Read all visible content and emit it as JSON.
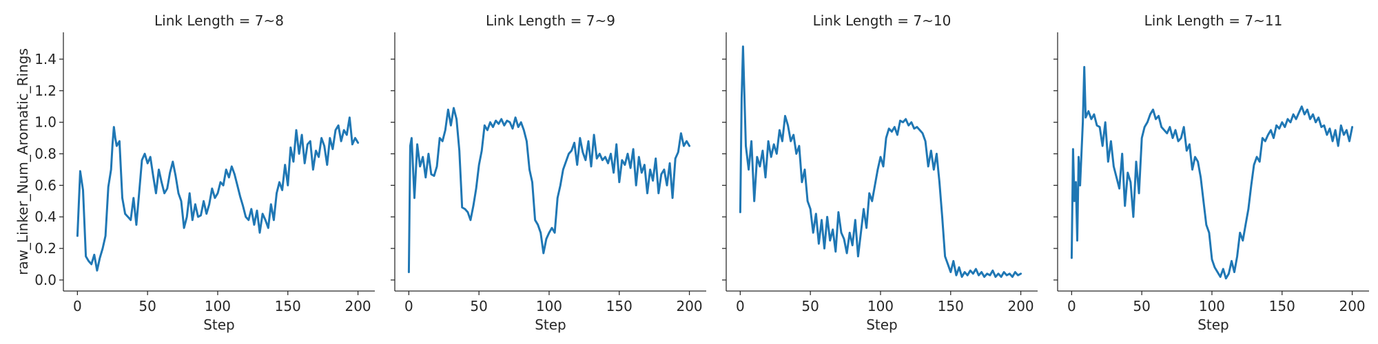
{
  "chart_data": {
    "type": "line",
    "facet_layout": "1 row x 4 columns, shared y axis",
    "ylabel": "raw_Linker_Num_Aromatic_Rings",
    "xlabel": "Step",
    "xlim": [
      -10,
      212
    ],
    "ylim": [
      -0.07,
      1.57
    ],
    "xticks": [
      0,
      50,
      100,
      150,
      200
    ],
    "yticks": [
      0.0,
      0.2,
      0.4,
      0.6,
      0.8,
      1.0,
      1.2,
      1.4
    ],
    "ytick_labels": [
      "0.0",
      "0.2",
      "0.4",
      "0.6",
      "0.8",
      "1.0",
      "1.2",
      "1.4"
    ],
    "grid": false,
    "line_color": "#1f77b4",
    "panels": [
      {
        "title": "Link Length = 7~8",
        "x": [
          0,
          2,
          4,
          6,
          8,
          10,
          12,
          14,
          16,
          18,
          20,
          22,
          24,
          25,
          26,
          27,
          28,
          30,
          32,
          34,
          36,
          38,
          40,
          42,
          44,
          46,
          48,
          50,
          52,
          54,
          56,
          58,
          60,
          62,
          64,
          66,
          68,
          70,
          72,
          74,
          76,
          78,
          80,
          82,
          84,
          86,
          88,
          90,
          92,
          94,
          96,
          98,
          100,
          102,
          104,
          106,
          108,
          110,
          112,
          114,
          116,
          118,
          120,
          122,
          124,
          126,
          128,
          130,
          132,
          134,
          136,
          138,
          140,
          142,
          144,
          146,
          148,
          150,
          152,
          154,
          156,
          158,
          160,
          162,
          164,
          166,
          168,
          170,
          172,
          174,
          176,
          178,
          180,
          182,
          184,
          186,
          188,
          190,
          192,
          194,
          196,
          198,
          200
        ],
        "values": [
          0.28,
          0.69,
          0.57,
          0.15,
          0.12,
          0.1,
          0.16,
          0.06,
          0.14,
          0.2,
          0.28,
          0.59,
          0.7,
          0.86,
          0.97,
          0.9,
          0.85,
          0.88,
          0.52,
          0.42,
          0.4,
          0.38,
          0.52,
          0.35,
          0.55,
          0.76,
          0.8,
          0.74,
          0.78,
          0.66,
          0.55,
          0.7,
          0.62,
          0.55,
          0.58,
          0.68,
          0.75,
          0.66,
          0.55,
          0.5,
          0.33,
          0.4,
          0.55,
          0.38,
          0.48,
          0.4,
          0.41,
          0.5,
          0.42,
          0.48,
          0.58,
          0.52,
          0.55,
          0.62,
          0.6,
          0.7,
          0.65,
          0.72,
          0.67,
          0.6,
          0.53,
          0.47,
          0.4,
          0.38,
          0.45,
          0.35,
          0.44,
          0.3,
          0.42,
          0.38,
          0.33,
          0.48,
          0.38,
          0.55,
          0.62,
          0.57,
          0.73,
          0.6,
          0.84,
          0.75,
          0.95,
          0.8,
          0.92,
          0.74,
          0.86,
          0.88,
          0.7,
          0.82,
          0.78,
          0.9,
          0.85,
          0.73,
          0.9,
          0.83,
          0.95,
          0.98,
          0.88,
          0.95,
          0.92,
          1.03,
          0.86,
          0.9,
          0.87
        ]
      },
      {
        "title": "Link Length = 7~9",
        "x": [
          0,
          1,
          2,
          4,
          6,
          8,
          10,
          12,
          14,
          16,
          18,
          20,
          22,
          24,
          26,
          28,
          30,
          32,
          34,
          36,
          38,
          40,
          42,
          44,
          46,
          48,
          50,
          52,
          54,
          56,
          58,
          60,
          62,
          64,
          66,
          68,
          70,
          72,
          74,
          76,
          78,
          80,
          82,
          84,
          86,
          88,
          90,
          92,
          94,
          96,
          98,
          100,
          102,
          104,
          106,
          108,
          110,
          112,
          114,
          116,
          118,
          120,
          122,
          124,
          126,
          128,
          130,
          132,
          134,
          136,
          138,
          140,
          142,
          144,
          146,
          148,
          150,
          152,
          154,
          156,
          158,
          160,
          162,
          164,
          166,
          168,
          170,
          172,
          174,
          176,
          178,
          180,
          182,
          184,
          186,
          188,
          190,
          192,
          194,
          196,
          198,
          200
        ],
        "values": [
          0.05,
          0.85,
          0.9,
          0.52,
          0.86,
          0.72,
          0.78,
          0.65,
          0.8,
          0.67,
          0.66,
          0.72,
          0.9,
          0.88,
          0.95,
          1.08,
          0.98,
          1.09,
          1.02,
          0.82,
          0.46,
          0.45,
          0.43,
          0.38,
          0.47,
          0.58,
          0.73,
          0.82,
          0.98,
          0.95,
          1.0,
          0.97,
          1.01,
          0.99,
          1.02,
          0.98,
          1.01,
          1.0,
          0.96,
          1.03,
          0.97,
          1.0,
          0.95,
          0.88,
          0.7,
          0.62,
          0.38,
          0.35,
          0.3,
          0.17,
          0.26,
          0.3,
          0.33,
          0.3,
          0.52,
          0.6,
          0.7,
          0.75,
          0.8,
          0.82,
          0.87,
          0.73,
          0.9,
          0.81,
          0.76,
          0.88,
          0.72,
          0.92,
          0.77,
          0.8,
          0.76,
          0.78,
          0.74,
          0.8,
          0.68,
          0.86,
          0.62,
          0.76,
          0.73,
          0.8,
          0.71,
          0.83,
          0.6,
          0.78,
          0.68,
          0.73,
          0.55,
          0.7,
          0.63,
          0.77,
          0.55,
          0.67,
          0.7,
          0.6,
          0.74,
          0.52,
          0.77,
          0.81,
          0.93,
          0.85,
          0.88,
          0.85
        ]
      },
      {
        "title": "Link Length = 7~10",
        "x": [
          0,
          1,
          2,
          4,
          6,
          8,
          10,
          12,
          14,
          16,
          18,
          20,
          22,
          24,
          26,
          28,
          30,
          32,
          34,
          36,
          38,
          40,
          42,
          44,
          46,
          48,
          50,
          52,
          54,
          56,
          58,
          60,
          62,
          64,
          66,
          68,
          70,
          72,
          74,
          76,
          78,
          80,
          82,
          84,
          86,
          88,
          90,
          92,
          94,
          96,
          98,
          100,
          102,
          104,
          106,
          108,
          110,
          112,
          114,
          116,
          118,
          120,
          122,
          124,
          126,
          128,
          130,
          132,
          134,
          136,
          138,
          140,
          142,
          144,
          146,
          148,
          150,
          152,
          154,
          156,
          158,
          160,
          162,
          164,
          166,
          168,
          170,
          172,
          174,
          176,
          178,
          180,
          182,
          184,
          186,
          188,
          190,
          192,
          194,
          196,
          198,
          200
        ],
        "values": [
          0.43,
          1.15,
          1.48,
          0.85,
          0.7,
          0.88,
          0.5,
          0.78,
          0.72,
          0.82,
          0.65,
          0.88,
          0.78,
          0.86,
          0.8,
          0.95,
          0.88,
          1.04,
          0.98,
          0.88,
          0.92,
          0.8,
          0.85,
          0.62,
          0.7,
          0.5,
          0.45,
          0.3,
          0.42,
          0.23,
          0.38,
          0.2,
          0.4,
          0.25,
          0.32,
          0.18,
          0.43,
          0.3,
          0.26,
          0.17,
          0.3,
          0.22,
          0.38,
          0.15,
          0.3,
          0.45,
          0.33,
          0.55,
          0.5,
          0.6,
          0.7,
          0.78,
          0.72,
          0.9,
          0.96,
          0.94,
          0.97,
          0.92,
          1.01,
          1.0,
          1.02,
          0.98,
          1.0,
          0.96,
          0.97,
          0.95,
          0.93,
          0.88,
          0.72,
          0.82,
          0.7,
          0.8,
          0.62,
          0.4,
          0.15,
          0.1,
          0.05,
          0.12,
          0.03,
          0.08,
          0.02,
          0.05,
          0.03,
          0.06,
          0.04,
          0.07,
          0.03,
          0.05,
          0.02,
          0.04,
          0.03,
          0.06,
          0.02,
          0.04,
          0.02,
          0.05,
          0.03,
          0.04,
          0.02,
          0.05,
          0.03,
          0.04
        ]
      },
      {
        "title": "Link Length = 7~11",
        "x": [
          0,
          1,
          2,
          3,
          4,
          5,
          6,
          8,
          9,
          10,
          12,
          14,
          16,
          18,
          20,
          22,
          24,
          26,
          28,
          30,
          32,
          34,
          36,
          38,
          40,
          42,
          44,
          46,
          48,
          50,
          52,
          54,
          56,
          58,
          60,
          62,
          64,
          66,
          68,
          70,
          72,
          74,
          76,
          78,
          80,
          82,
          84,
          86,
          88,
          90,
          92,
          94,
          96,
          98,
          100,
          102,
          104,
          106,
          108,
          110,
          112,
          114,
          116,
          118,
          120,
          122,
          124,
          126,
          128,
          130,
          132,
          134,
          136,
          138,
          140,
          142,
          144,
          146,
          148,
          150,
          152,
          154,
          156,
          158,
          160,
          162,
          164,
          166,
          168,
          170,
          172,
          174,
          176,
          178,
          180,
          182,
          184,
          186,
          188,
          190,
          192,
          194,
          196,
          198,
          200
        ],
        "values": [
          0.14,
          0.83,
          0.5,
          0.62,
          0.25,
          0.78,
          0.6,
          1.0,
          1.35,
          1.03,
          1.07,
          1.02,
          1.05,
          0.98,
          0.97,
          0.85,
          1.0,
          0.75,
          0.88,
          0.72,
          0.65,
          0.58,
          0.8,
          0.47,
          0.68,
          0.62,
          0.4,
          0.75,
          0.55,
          0.9,
          0.97,
          1.0,
          1.05,
          1.08,
          1.02,
          1.04,
          0.97,
          0.95,
          0.93,
          0.97,
          0.9,
          0.95,
          0.88,
          0.9,
          0.97,
          0.82,
          0.86,
          0.7,
          0.78,
          0.75,
          0.65,
          0.5,
          0.35,
          0.3,
          0.13,
          0.08,
          0.05,
          0.02,
          0.07,
          0.01,
          0.04,
          0.12,
          0.05,
          0.15,
          0.3,
          0.25,
          0.35,
          0.45,
          0.6,
          0.73,
          0.78,
          0.75,
          0.9,
          0.88,
          0.92,
          0.95,
          0.9,
          0.98,
          0.96,
          1.0,
          0.97,
          1.02,
          1.0,
          1.05,
          1.02,
          1.06,
          1.1,
          1.05,
          1.08,
          1.02,
          1.05,
          1.0,
          1.03,
          0.97,
          0.98,
          0.92,
          0.96,
          0.88,
          0.95,
          0.85,
          0.98,
          0.92,
          0.95,
          0.88,
          0.97
        ]
      }
    ]
  }
}
